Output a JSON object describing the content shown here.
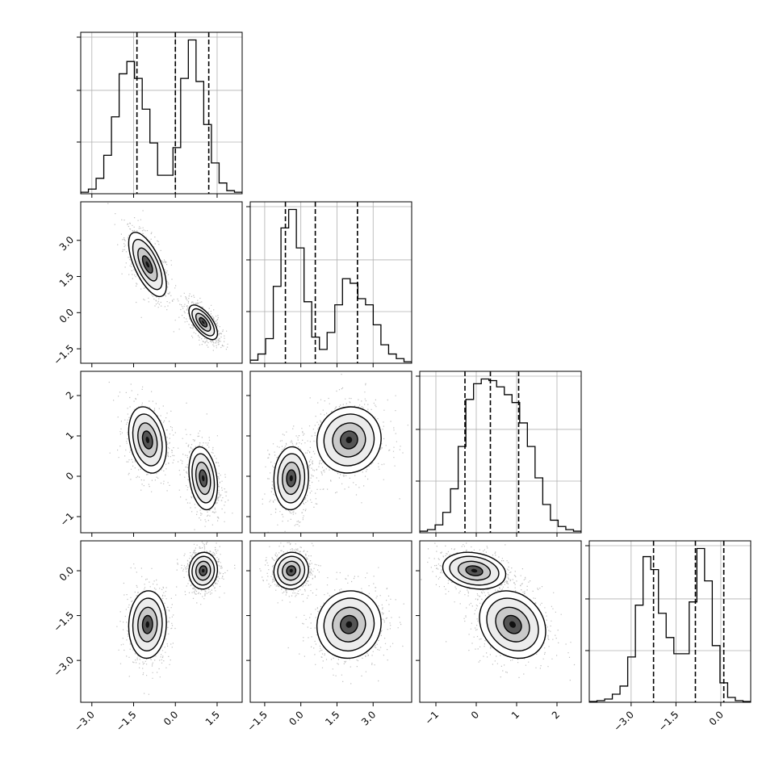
{
  "chart_data": {
    "type": "corner",
    "parameters": [
      "",
      "",
      "",
      ""
    ],
    "grid": true,
    "colors": {
      "line": "#000000",
      "scatter": "#8a8a8a",
      "grid": "#b0b0b0",
      "fill_low": "#ffffff",
      "fill_mid": "#c9c9c9",
      "fill_high": "#555555",
      "fill_peak": "#111111"
    },
    "ranges": [
      [
        -3.4,
        2.4
      ],
      [
        -2.1,
        4.6
      ],
      [
        -1.4,
        2.6
      ],
      [
        -4.4,
        1.0
      ]
    ],
    "ticks": [
      {
        "values": [
          -3.0,
          -1.5,
          0.0,
          1.5
        ],
        "labels": [
          "−3.0",
          "−1.5",
          "0.0",
          "1.5"
        ]
      },
      {
        "values": [
          -1.5,
          0.0,
          1.5,
          3.0
        ],
        "labels": [
          "−1.5",
          "0.0",
          "1.5",
          "3.0"
        ]
      },
      {
        "values": [
          -1,
          0,
          1,
          2
        ],
        "labels": [
          "−1",
          "0",
          "1",
          "2"
        ]
      },
      {
        "values": [
          -3.0,
          -1.5,
          0.0
        ],
        "labels": [
          "−3.0",
          "−1.5",
          "0.0"
        ]
      }
    ],
    "quantiles": [
      [
        -1.38,
        0.0,
        1.2
      ],
      [
        -0.64,
        0.6,
        2.35
      ],
      [
        -0.28,
        0.35,
        1.05
      ],
      [
        -2.25,
        -0.85,
        0.1
      ]
    ],
    "histograms": [
      [
        0.01,
        0.03,
        0.1,
        0.25,
        0.5,
        0.78,
        0.86,
        0.75,
        0.55,
        0.33,
        0.12,
        0.12,
        0.3,
        0.75,
        1.0,
        0.73,
        0.45,
        0.2,
        0.07,
        0.02,
        0.01
      ],
      [
        0.02,
        0.06,
        0.16,
        0.5,
        0.88,
        1.0,
        0.75,
        0.4,
        0.17,
        0.09,
        0.2,
        0.38,
        0.55,
        0.52,
        0.42,
        0.38,
        0.25,
        0.12,
        0.06,
        0.03,
        0.01
      ],
      [
        0.01,
        0.02,
        0.05,
        0.13,
        0.28,
        0.55,
        0.85,
        0.95,
        0.98,
        0.97,
        0.93,
        0.88,
        0.83,
        0.7,
        0.55,
        0.35,
        0.18,
        0.08,
        0.04,
        0.02,
        0.01
      ],
      [
        0.005,
        0.01,
        0.02,
        0.05,
        0.1,
        0.28,
        0.6,
        0.9,
        0.82,
        0.55,
        0.4,
        0.3,
        0.3,
        0.62,
        0.95,
        0.75,
        0.35,
        0.12,
        0.03,
        0.01,
        0.005
      ]
    ],
    "modes": [
      {
        "weight": 0.5,
        "mean": [
          -1.0,
          2.0,
          0.9,
          -1.8
        ],
        "std": [
          0.33,
          0.65,
          0.4,
          0.55
        ]
      },
      {
        "weight": 0.5,
        "mean": [
          1.0,
          -0.4,
          -0.05,
          0.0
        ],
        "std": [
          0.25,
          0.35,
          0.38,
          0.3
        ]
      }
    ]
  }
}
